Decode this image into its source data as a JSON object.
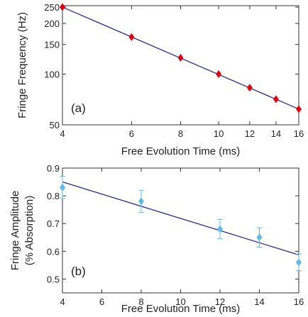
{
  "chart_data": [
    {
      "type": "scatter",
      "panel_label": "(a)",
      "xlabel": "Free Evolution Time (ms)",
      "ylabel": "Fringe Frequency (Hz)",
      "xscale": "log",
      "yscale": "log",
      "xlim": [
        4,
        16
      ],
      "ylim": [
        50,
        255
      ],
      "xticks": [
        4,
        6,
        8,
        10,
        12,
        14,
        16
      ],
      "yticks": [
        50,
        100,
        150,
        200,
        250
      ],
      "grid": false,
      "marker": "diamond",
      "marker_color": "#e3000f",
      "line_color": "#2a2a9a",
      "series": [
        {
          "x": [
            4,
            6,
            8,
            10,
            12,
            14,
            16
          ],
          "y": [
            250,
            166,
            125,
            100,
            83,
            71,
            62
          ]
        }
      ],
      "fit_line": {
        "x": [
          4,
          16
        ],
        "y": [
          250,
          62
        ]
      }
    },
    {
      "type": "scatter",
      "panel_label": "(b)",
      "xlabel": "Free Evolution Time (ms)",
      "ylabel": "Fringe Amplitude",
      "ylabel2": "(% Absorption)",
      "xlim": [
        4,
        16
      ],
      "ylim": [
        0.45,
        0.9
      ],
      "xticks": [
        4,
        6,
        8,
        10,
        12,
        14,
        16
      ],
      "yticks": [
        0.5,
        0.6,
        0.7,
        0.8,
        0.9
      ],
      "grid": false,
      "marker": "diamond",
      "marker_color": "#5bbce8",
      "line_color": "#2a2a9a",
      "series": [
        {
          "x": [
            4,
            8,
            12,
            14,
            16
          ],
          "y": [
            0.83,
            0.78,
            0.68,
            0.65,
            0.56
          ],
          "err": [
            0.04,
            0.04,
            0.035,
            0.035,
            0.03
          ]
        }
      ],
      "fit_line": {
        "x": [
          4,
          16
        ],
        "y": [
          0.85,
          0.587
        ]
      }
    }
  ]
}
